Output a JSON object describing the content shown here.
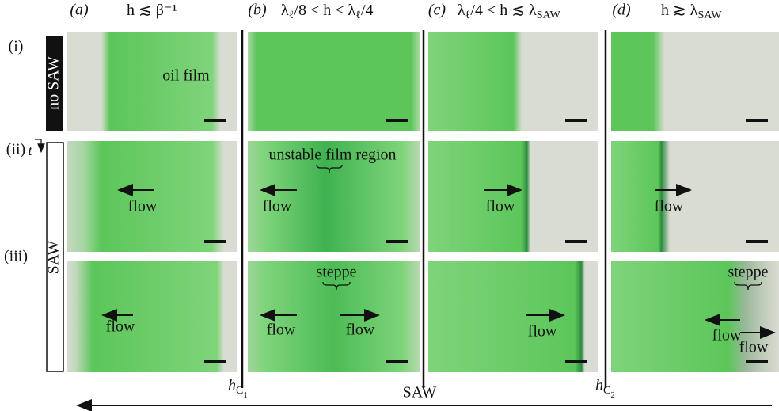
{
  "columns": [
    {
      "label": "(a)",
      "condition": [
        "h ≲ β⁻¹"
      ]
    },
    {
      "label": "(b)",
      "condition": [
        "λ",
        "ℓ",
        "/8 < h < λ",
        "ℓ",
        "/4"
      ]
    },
    {
      "label": "(c)",
      "condition": [
        "λ",
        "ℓ",
        "/4 < h ≲ λ",
        "SAW"
      ]
    },
    {
      "label": "(d)",
      "condition": [
        "h ≳ λ",
        "SAW"
      ]
    }
  ],
  "rows": [
    "(i)",
    "(ii)",
    "(iii)"
  ],
  "side_labels": {
    "no_saw": "no SAW",
    "saw": "SAW",
    "time": "t"
  },
  "labels": [
    "oil film",
    "flow",
    "unstable film region",
    "flow",
    "flow",
    "steppe",
    "flow",
    "flow",
    "flow",
    "flow",
    "flow",
    "steppe",
    "flow",
    "flow"
  ],
  "bottom": {
    "h_c1": [
      "h",
      "C",
      "1"
    ],
    "saw": "SAW",
    "h_c2": [
      "h",
      "C",
      "2"
    ]
  }
}
